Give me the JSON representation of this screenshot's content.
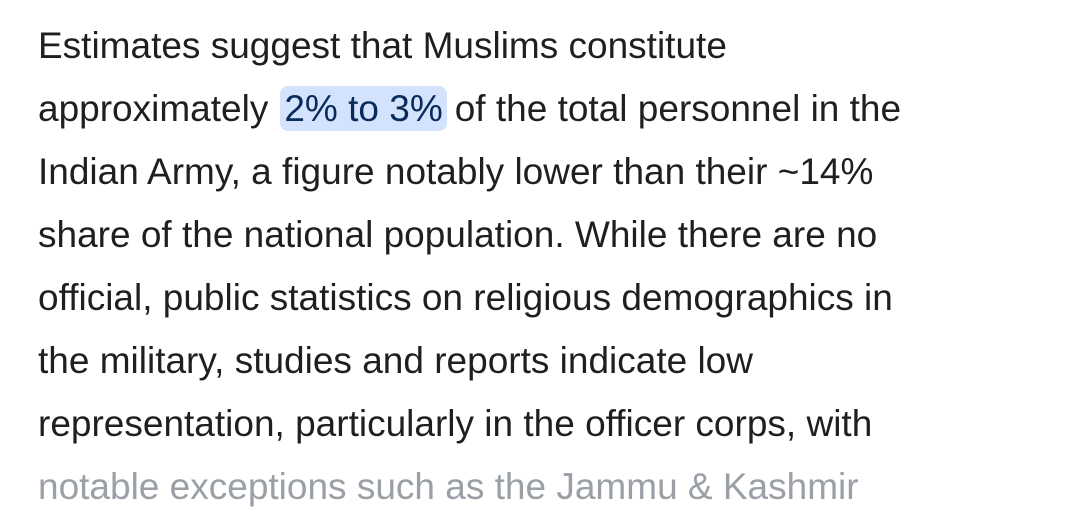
{
  "paragraph": {
    "lines": [
      "Estimates suggest that Muslims constitute",
      {
        "before": "approximately",
        "highlight": "2% to 3%",
        "after": "of the total personnel in the"
      },
      "Indian Army, a figure notably lower than their ~14%",
      "share of the national population. While there are no",
      "official, public statistics on religious demographics in",
      "the military, studies and reports indicate low",
      "representation, particularly in the officer corps, with"
    ],
    "faded_line": "notable exceptions such as the Jammu & Kashmir"
  }
}
